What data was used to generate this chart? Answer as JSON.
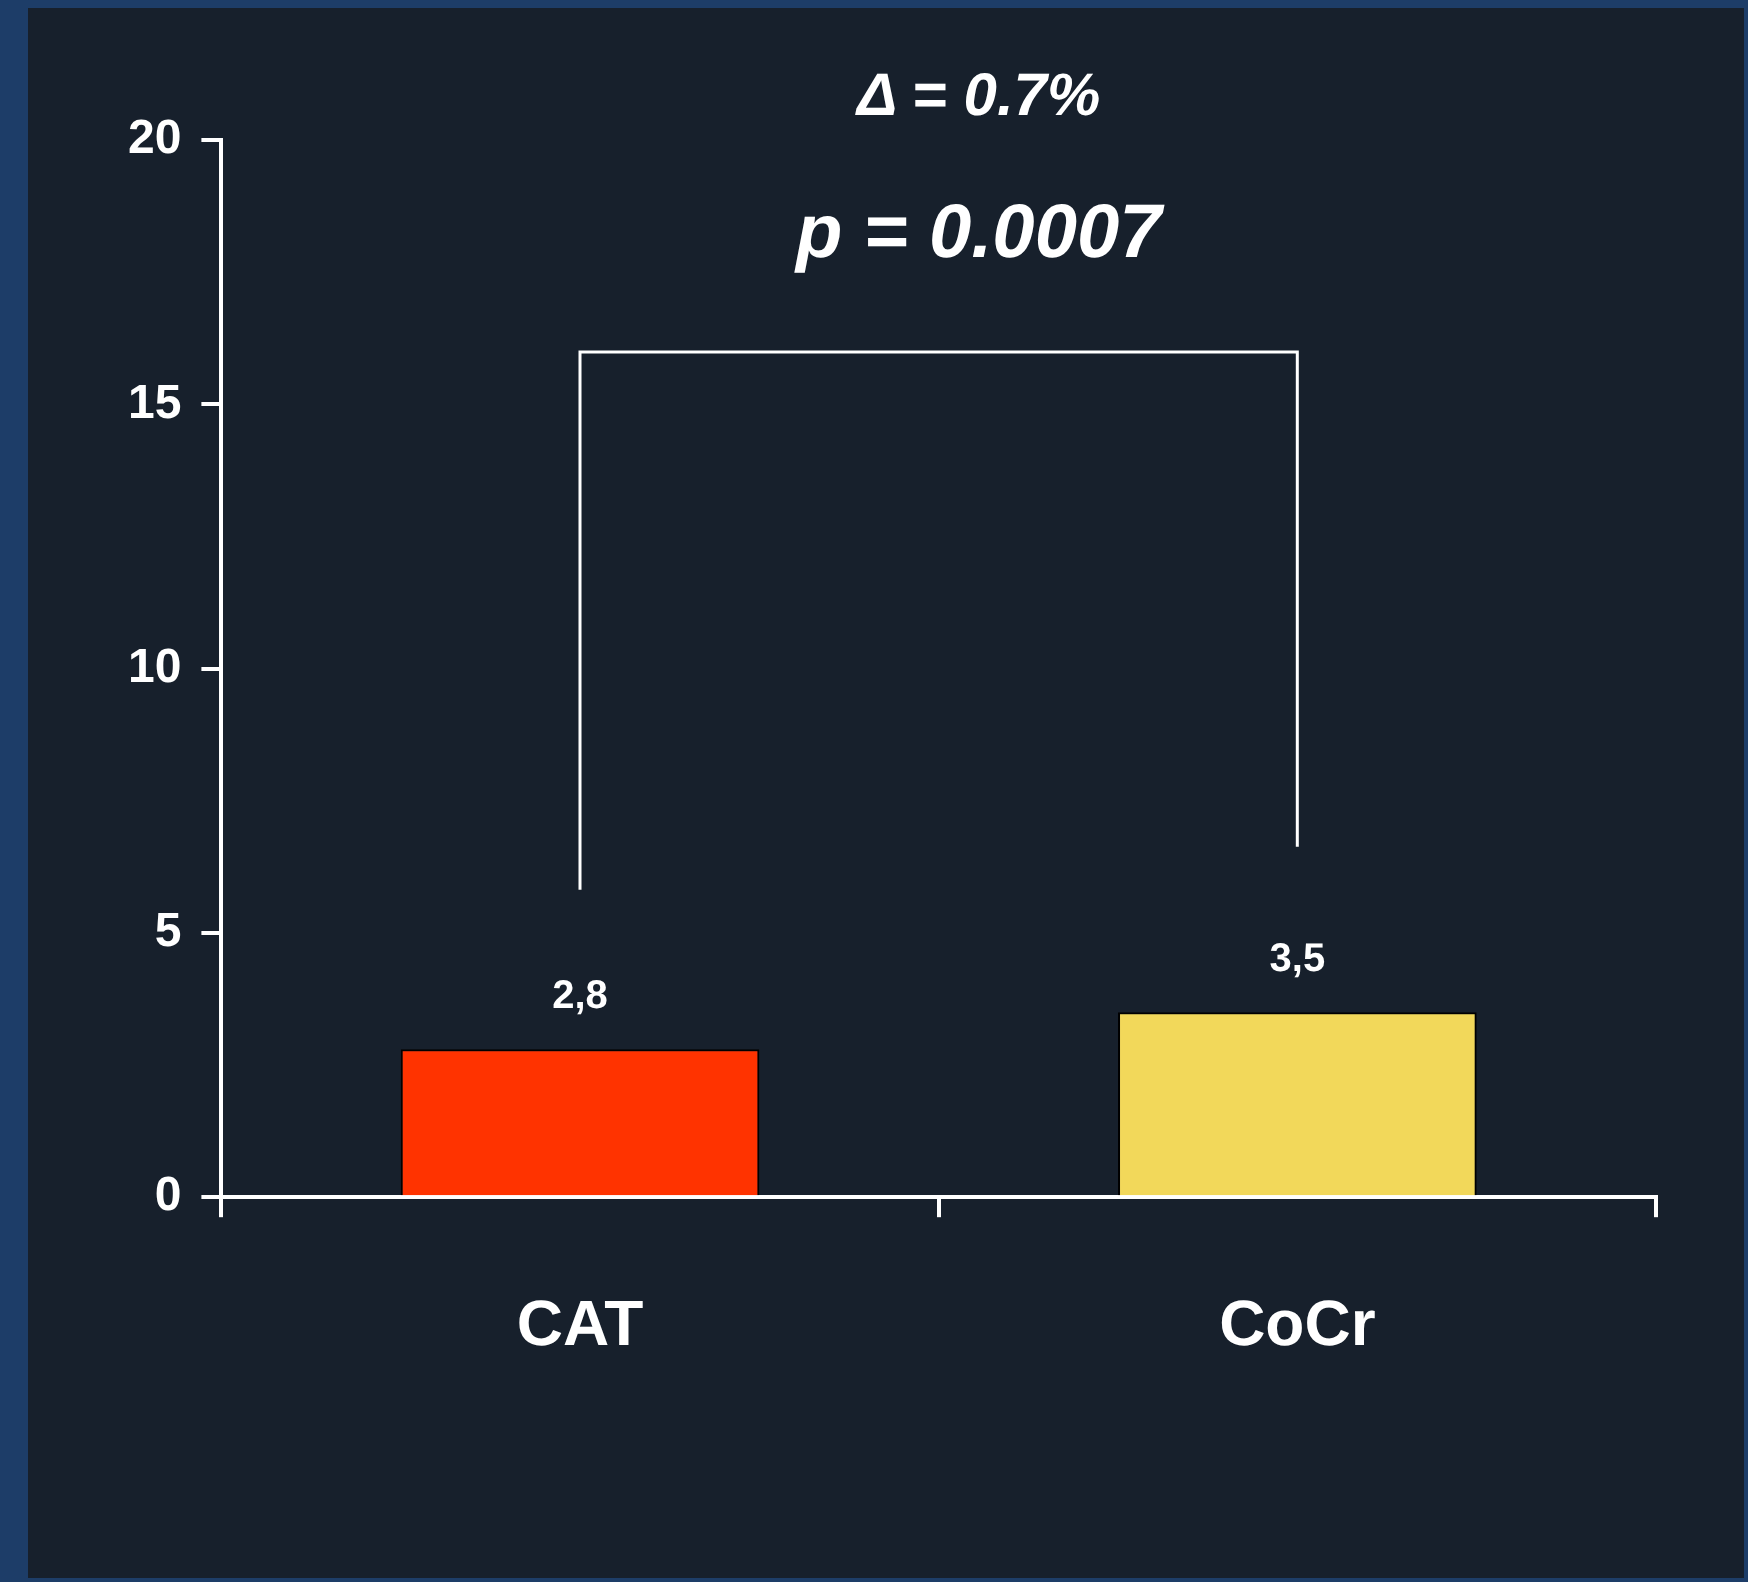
{
  "chart_data": {
    "type": "bar",
    "categories": [
      "CAT",
      "CoCr"
    ],
    "values": [
      2.8,
      3.5
    ],
    "value_labels": [
      "2,8",
      "3,5"
    ],
    "colors": [
      "#ff3300",
      "#f2d85a"
    ],
    "ylim": [
      0,
      20
    ],
    "yticks": [
      0,
      5,
      10,
      15,
      20
    ],
    "grid": false,
    "legend": false,
    "annotations": [
      "Δ = 0.7%",
      "p = 0.0007"
    ]
  }
}
